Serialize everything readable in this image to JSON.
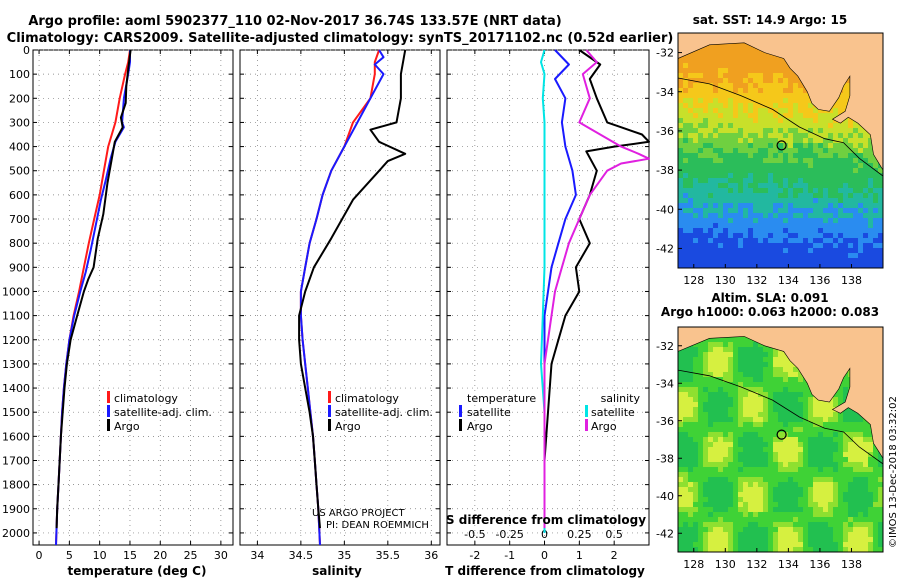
{
  "title_lines": [
    "Argo profile: aoml 5902377_110 02-Nov-2017 36.74S 133.57E (NRT data)",
    "Climatology: CARS2009. Satellite-adjusted climatology: synTS_20171102.nc (0.52d earlier)"
  ],
  "colors": {
    "climatology": "#ff1a1a",
    "satellite": "#1a1aff",
    "argo": "#000000",
    "t_sat_diff": "#1a1aff",
    "s_sat_diff": "#00e5e5",
    "s_argo_diff": "#e020e0",
    "land": "#f9c38e",
    "coast": "#000000"
  },
  "chart_data": [
    {
      "name": "temperature-profile",
      "type": "line",
      "xlabel": "temperature (deg C)",
      "xlim": [
        -1,
        32
      ],
      "ylim": [
        0,
        2050
      ],
      "xticks": [
        0,
        5,
        10,
        15,
        20,
        25,
        30
      ],
      "yticks": [
        0,
        100,
        200,
        300,
        400,
        500,
        600,
        700,
        800,
        900,
        1000,
        1100,
        1200,
        1300,
        1400,
        1500,
        1600,
        1700,
        1800,
        1900,
        2000
      ],
      "legend": [
        "climatology",
        "satellite-adj. clim.",
        "Argo"
      ],
      "series": [
        {
          "name": "climatology",
          "color": "#ff1a1a",
          "points": [
            [
              15,
              0
            ],
            [
              14.7,
              50
            ],
            [
              14.2,
              100
            ],
            [
              13.3,
              200
            ],
            [
              12.6,
              300
            ],
            [
              11.4,
              400
            ],
            [
              10.7,
              500
            ],
            [
              10,
              600
            ],
            [
              9.1,
              700
            ],
            [
              8.2,
              800
            ],
            [
              7.4,
              900
            ],
            [
              6.6,
              1000
            ],
            [
              5.7,
              1100
            ],
            [
              5,
              1200
            ],
            [
              4.5,
              1300
            ],
            [
              4.1,
              1400
            ],
            [
              3.8,
              1500
            ],
            [
              3.6,
              1600
            ],
            [
              3.4,
              1700
            ],
            [
              3.2,
              1800
            ],
            [
              3,
              1900
            ],
            [
              2.8,
              2050
            ]
          ]
        },
        {
          "name": "satellite-adj. clim.",
          "color": "#1a1aff",
          "points": [
            [
              15,
              0
            ],
            [
              15,
              50
            ],
            [
              14.7,
              100
            ],
            [
              14,
              200
            ],
            [
              13.7,
              300
            ],
            [
              14,
              320
            ],
            [
              12.6,
              380
            ],
            [
              11.8,
              450
            ],
            [
              11,
              540
            ],
            [
              10.2,
              620
            ],
            [
              9.4,
              720
            ],
            [
              8.5,
              830
            ],
            [
              7.7,
              920
            ],
            [
              6.8,
              1000
            ],
            [
              5.8,
              1100
            ],
            [
              5,
              1200
            ],
            [
              4.5,
              1300
            ],
            [
              4.1,
              1400
            ],
            [
              3.8,
              1500
            ],
            [
              3.6,
              1600
            ],
            [
              3.4,
              1700
            ],
            [
              3.2,
              1800
            ],
            [
              3,
              1900
            ],
            [
              2.8,
              2050
            ]
          ]
        },
        {
          "name": "Argo",
          "color": "#000000",
          "points": [
            [
              15.1,
              0
            ],
            [
              14.7,
              80
            ],
            [
              14.4,
              150
            ],
            [
              14.3,
              220
            ],
            [
              13.5,
              280
            ],
            [
              13.8,
              320
            ],
            [
              12.5,
              380
            ],
            [
              12,
              450
            ],
            [
              11.3,
              550
            ],
            [
              10.6,
              680
            ],
            [
              9.7,
              780
            ],
            [
              9,
              900
            ],
            [
              8.1,
              950
            ],
            [
              7.4,
              1000
            ],
            [
              6.3,
              1100
            ],
            [
              5.2,
              1200
            ],
            [
              4.6,
              1300
            ],
            [
              4.2,
              1400
            ],
            [
              3.9,
              1500
            ],
            [
              3.6,
              1600
            ],
            [
              3.4,
              1700
            ],
            [
              3.2,
              1800
            ],
            [
              3,
              1900
            ],
            [
              2.9,
              1980
            ]
          ]
        }
      ]
    },
    {
      "name": "salinity-profile",
      "type": "line",
      "xlabel": "salinity",
      "xlim": [
        33.8,
        36.1
      ],
      "ylim": [
        0,
        2050
      ],
      "xticks": [
        34,
        34.5,
        35,
        35.5,
        36
      ],
      "legend": [
        "climatology",
        "satellite-adj. clim.",
        "Argo"
      ],
      "annotations": [
        "US ARGO PROJECT",
        "PI: DEAN ROEMMICH"
      ],
      "series": [
        {
          "name": "climatology",
          "color": "#ff1a1a",
          "points": [
            [
              35.4,
              0
            ],
            [
              35.35,
              50
            ],
            [
              35.35,
              100
            ],
            [
              35.3,
              200
            ],
            [
              35.1,
              300
            ],
            [
              35,
              400
            ],
            [
              34.85,
              500
            ],
            [
              34.75,
              600
            ],
            [
              34.68,
              700
            ],
            [
              34.6,
              800
            ],
            [
              34.55,
              900
            ],
            [
              34.5,
              1000
            ],
            [
              34.5,
              1100
            ],
            [
              34.52,
              1200
            ],
            [
              34.55,
              1300
            ],
            [
              34.58,
              1400
            ],
            [
              34.61,
              1500
            ],
            [
              34.64,
              1600
            ],
            [
              34.66,
              1700
            ],
            [
              34.68,
              1800
            ],
            [
              34.7,
              1900
            ],
            [
              34.72,
              2050
            ]
          ]
        },
        {
          "name": "satellite-adj. clim.",
          "color": "#1a1aff",
          "points": [
            [
              35.4,
              0
            ],
            [
              35.45,
              30
            ],
            [
              35.35,
              60
            ],
            [
              35.45,
              100
            ],
            [
              35.3,
              200
            ],
            [
              35.15,
              300
            ],
            [
              35,
              400
            ],
            [
              34.85,
              500
            ],
            [
              34.75,
              600
            ],
            [
              34.68,
              700
            ],
            [
              34.6,
              800
            ],
            [
              34.55,
              900
            ],
            [
              34.5,
              1000
            ],
            [
              34.5,
              1100
            ],
            [
              34.52,
              1200
            ],
            [
              34.55,
              1300
            ],
            [
              34.58,
              1400
            ],
            [
              34.61,
              1500
            ],
            [
              34.64,
              1600
            ],
            [
              34.66,
              1700
            ],
            [
              34.68,
              1800
            ],
            [
              34.7,
              1900
            ],
            [
              34.72,
              2050
            ]
          ]
        },
        {
          "name": "Argo",
          "color": "#000000",
          "points": [
            [
              35.7,
              0
            ],
            [
              35.65,
              100
            ],
            [
              35.65,
              200
            ],
            [
              35.6,
              300
            ],
            [
              35.3,
              330
            ],
            [
              35.4,
              380
            ],
            [
              35.7,
              430
            ],
            [
              35.5,
              460
            ],
            [
              35.35,
              520
            ],
            [
              35.1,
              620
            ],
            [
              34.85,
              780
            ],
            [
              34.65,
              900
            ],
            [
              34.55,
              1000
            ],
            [
              34.48,
              1100
            ],
            [
              34.48,
              1200
            ],
            [
              34.5,
              1300
            ],
            [
              34.55,
              1400
            ],
            [
              34.6,
              1500
            ],
            [
              34.64,
              1600
            ],
            [
              34.66,
              1700
            ],
            [
              34.68,
              1800
            ],
            [
              34.7,
              1900
            ],
            [
              34.72,
              1980
            ]
          ]
        }
      ]
    },
    {
      "name": "difference-profile",
      "type": "line",
      "xlabel": "T difference from climatology",
      "xlabel_top": "S difference from climatology",
      "xlim": [
        -2.8,
        3
      ],
      "ylim": [
        0,
        2050
      ],
      "xticks": [
        -2,
        -1,
        0,
        1,
        2
      ],
      "s_ticks": [
        {
          "value": -0.5,
          "label": "-0.5"
        },
        {
          "value": -0.25,
          "label": "-0.25"
        },
        {
          "value": 0,
          "label": "0"
        },
        {
          "value": 0.25,
          "label": "0.25"
        },
        {
          "value": 0.5,
          "label": "0.5"
        }
      ],
      "s_scale": 4,
      "legend_left_title": "temperature",
      "legend_right_title": "salinity",
      "legend_left": [
        "satellite",
        "Argo"
      ],
      "legend_right": [
        "satellite",
        "Argo"
      ],
      "series": [
        {
          "name": "T satellite",
          "color": "#1a1aff",
          "points": [
            [
              0.3,
              0
            ],
            [
              0.7,
              60
            ],
            [
              0.3,
              120
            ],
            [
              0.6,
              200
            ],
            [
              0.5,
              300
            ],
            [
              0.6,
              400
            ],
            [
              0.8,
              500
            ],
            [
              0.9,
              600
            ],
            [
              0.6,
              700
            ],
            [
              0.4,
              800
            ],
            [
              0.2,
              900
            ],
            [
              0.1,
              1000
            ],
            [
              0,
              1100
            ],
            [
              0,
              1300
            ],
            [
              0,
              1500
            ],
            [
              0,
              1700
            ],
            [
              0,
              1900
            ],
            [
              0,
              2000
            ]
          ]
        },
        {
          "name": "T Argo",
          "color": "#000000",
          "points": [
            [
              1,
              0
            ],
            [
              1.6,
              60
            ],
            [
              1.3,
              120
            ],
            [
              1.5,
              200
            ],
            [
              1.8,
              300
            ],
            [
              2.8,
              350
            ],
            [
              3,
              380
            ],
            [
              2,
              400
            ],
            [
              1.2,
              420
            ],
            [
              1.5,
              500
            ],
            [
              1.3,
              600
            ],
            [
              1,
              700
            ],
            [
              1.3,
              800
            ],
            [
              0.9,
              900
            ],
            [
              1,
              1000
            ],
            [
              0.6,
              1100
            ],
            [
              0.4,
              1200
            ],
            [
              0.2,
              1300
            ],
            [
              0.1,
              1500
            ],
            [
              0,
              1700
            ],
            [
              0,
              1900
            ],
            [
              0,
              1980
            ]
          ]
        },
        {
          "name": "S satellite",
          "color": "#00e5e5",
          "points": [
            [
              0,
              0
            ],
            [
              -0.1,
              50
            ],
            [
              0,
              100
            ],
            [
              -0.05,
              200
            ],
            [
              0,
              300
            ],
            [
              0,
              500
            ],
            [
              0,
              700
            ],
            [
              0,
              900
            ],
            [
              -0.05,
              1100
            ],
            [
              -0.1,
              1300
            ],
            [
              0,
              1500
            ],
            [
              0,
              1700
            ],
            [
              0,
              1900
            ],
            [
              0,
              2000
            ]
          ]
        },
        {
          "name": "S Argo",
          "color": "#e020e0",
          "points": [
            [
              1.2,
              0
            ],
            [
              1.5,
              50
            ],
            [
              1.1,
              100
            ],
            [
              1.3,
              200
            ],
            [
              1,
              300
            ],
            [
              2.2,
              400
            ],
            [
              2.7,
              430
            ],
            [
              3,
              450
            ],
            [
              2.2,
              470
            ],
            [
              1.8,
              500
            ],
            [
              1.3,
              600
            ],
            [
              1,
              700
            ],
            [
              0.7,
              800
            ],
            [
              0.5,
              900
            ],
            [
              0.3,
              1000
            ],
            [
              0.2,
              1100
            ],
            [
              0.1,
              1200
            ],
            [
              0,
              1300
            ],
            [
              0,
              1500
            ],
            [
              0,
              1700
            ],
            [
              0,
              1900
            ],
            [
              0,
              1980
            ]
          ]
        }
      ]
    },
    {
      "name": "sst-map",
      "type": "heatmap",
      "title": "sat. SST: 14.9 Argo: 15",
      "xticks": [
        128,
        130,
        132,
        134,
        136,
        138
      ],
      "yticks": [
        -32,
        -34,
        -36,
        -38,
        -40,
        -42
      ],
      "xlim": [
        127,
        140
      ],
      "ylim": [
        -43,
        -31
      ],
      "argo_lon": 133.57,
      "argo_lat": -36.74
    },
    {
      "name": "sla-map",
      "type": "heatmap",
      "title": "Altim. SLA: 0.091",
      "subtitle": "Argo h1000: 0.063 h2000: 0.083",
      "xticks": [
        128,
        130,
        132,
        134,
        136,
        138
      ],
      "yticks": [
        -32,
        -34,
        -36,
        -38,
        -40,
        -42
      ],
      "xlim": [
        127,
        140
      ],
      "ylim": [
        -43,
        -31
      ],
      "argo_lon": 133.57,
      "argo_lat": -36.74
    }
  ],
  "watermark": "©IMOS 13-Dec-2018 03:32:02"
}
